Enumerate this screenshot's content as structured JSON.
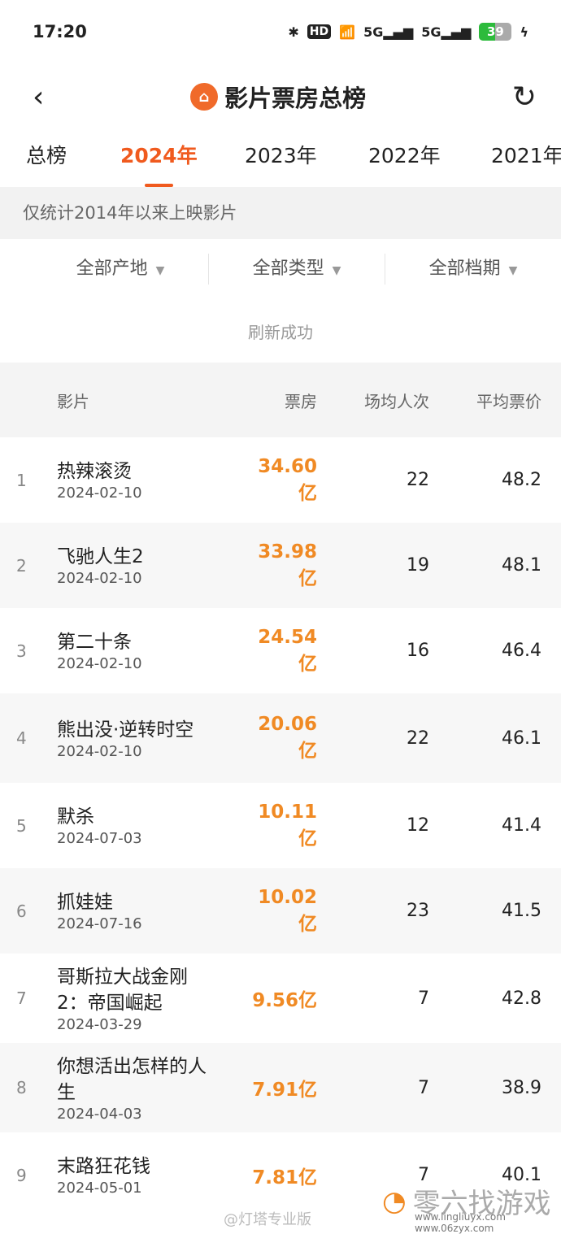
{
  "status": {
    "time": "17:20",
    "battery": "39",
    "hd": "HD"
  },
  "header": {
    "title": "影片票房总榜"
  },
  "tabs": [
    "总榜",
    "2024年",
    "2023年",
    "2022年",
    "2021年"
  ],
  "active_tab": 1,
  "note": "仅统计2014年以来上映影片",
  "filters": [
    "全部产地",
    "全部类型",
    "全部档期"
  ],
  "refresh_msg": "刷新成功",
  "columns": [
    "影片",
    "票房",
    "场均人次",
    "平均票价"
  ],
  "rows": [
    {
      "rank": "1",
      "name": "热辣滚烫",
      "date": "2024-02-10",
      "box": "34.60亿",
      "avg": "22",
      "price": "48.2"
    },
    {
      "rank": "2",
      "name": "飞驰人生2",
      "date": "2024-02-10",
      "box": "33.98亿",
      "avg": "19",
      "price": "48.1"
    },
    {
      "rank": "3",
      "name": "第二十条",
      "date": "2024-02-10",
      "box": "24.54亿",
      "avg": "16",
      "price": "46.4"
    },
    {
      "rank": "4",
      "name": "熊出没·逆转时空",
      "date": "2024-02-10",
      "box": "20.06亿",
      "avg": "22",
      "price": "46.1"
    },
    {
      "rank": "5",
      "name": "默杀",
      "date": "2024-07-03",
      "box": "10.11亿",
      "avg": "12",
      "price": "41.4"
    },
    {
      "rank": "6",
      "name": "抓娃娃",
      "date": "2024-07-16",
      "box": "10.02亿",
      "avg": "23",
      "price": "41.5"
    },
    {
      "rank": "7",
      "name": "哥斯拉大战金刚2：帝国崛起",
      "date": "2024-03-29",
      "box": "9.56亿",
      "avg": "7",
      "price": "42.8"
    },
    {
      "rank": "8",
      "name": "你想活出怎样的人生",
      "date": "2024-04-03",
      "box": "7.91亿",
      "avg": "7",
      "price": "38.9"
    },
    {
      "rank": "9",
      "name": "末路狂花钱",
      "date": "2024-05-01",
      "box": "7.81亿",
      "avg": "7",
      "price": "40.1"
    }
  ],
  "watermark": {
    "weibo": "@灯塔专业版",
    "brand": "零六找游戏",
    "sites": "www.lingliuyx.com www.06zyx.com"
  },
  "colors": {
    "accent": "#f05a1e",
    "box_office": "#f08a24"
  }
}
